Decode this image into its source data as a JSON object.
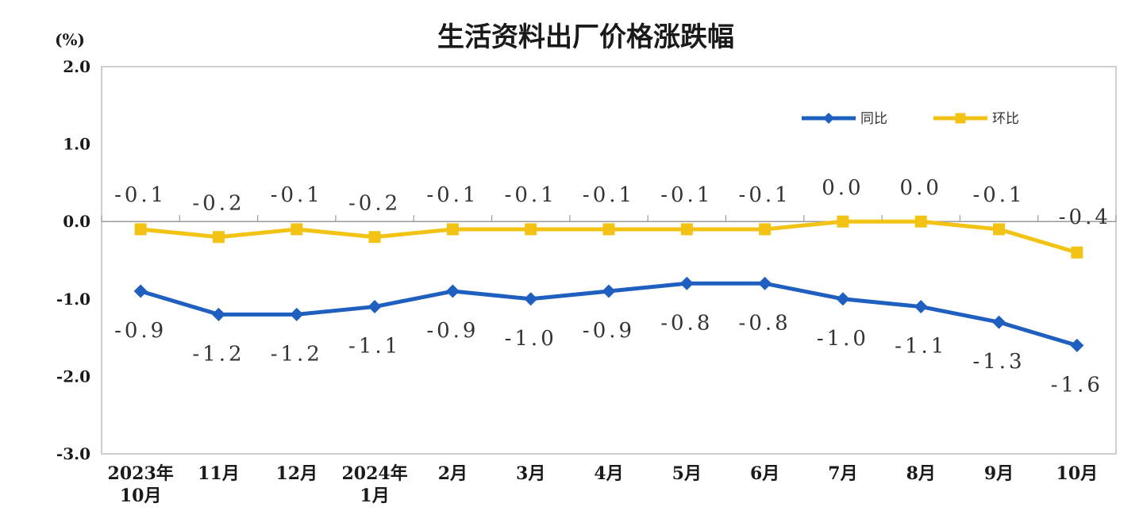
{
  "chart_data": {
    "type": "line",
    "title": "生活资料出厂价格涨跌幅",
    "ylabel": "(%)",
    "ylim": [
      -3.0,
      2.0
    ],
    "yticks": [
      "2.0",
      "1.0",
      "0.0",
      "-1.0",
      "-2.0",
      "-3.0"
    ],
    "categories": [
      [
        "2023年",
        "10月"
      ],
      [
        "11月"
      ],
      [
        "12月"
      ],
      [
        "2024年",
        "1月"
      ],
      [
        "2月"
      ],
      [
        "3月"
      ],
      [
        "4月"
      ],
      [
        "5月"
      ],
      [
        "6月"
      ],
      [
        "7月"
      ],
      [
        "8月"
      ],
      [
        "9月"
      ],
      [
        "10月"
      ]
    ],
    "series": [
      {
        "name": "同比",
        "color": "#1f5fbf",
        "marker": "diamond",
        "values": [
          -0.9,
          -1.2,
          -1.2,
          -1.1,
          -0.9,
          -1.0,
          -0.9,
          -0.8,
          -0.8,
          -1.0,
          -1.1,
          -1.3,
          -1.6
        ],
        "labels": [
          "-0.9",
          "-1.2",
          "-1.2",
          "-1.1",
          "-0.9",
          "-1.0",
          "-0.9",
          "-0.8",
          "-0.8",
          "-1.0",
          "-1.1",
          "-1.3",
          "-1.6"
        ]
      },
      {
        "name": "环比",
        "color": "#f2c314",
        "marker": "square",
        "values": [
          -0.1,
          -0.2,
          -0.1,
          -0.2,
          -0.1,
          -0.1,
          -0.1,
          -0.1,
          -0.1,
          0.0,
          0.0,
          -0.1,
          -0.4
        ],
        "labels": [
          "-0.1",
          "-0.2",
          "-0.1",
          "-0.2",
          "-0.1",
          "-0.1",
          "-0.1",
          "-0.1",
          "-0.1",
          "0.0",
          "0.0",
          "-0.1",
          "-0.4"
        ]
      }
    ],
    "legend": "top-right",
    "grid": false
  }
}
